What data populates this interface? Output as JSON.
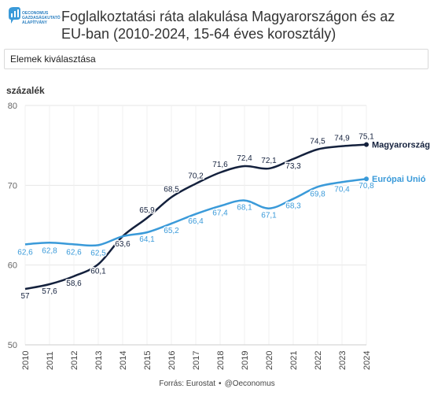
{
  "header": {
    "logo_text_1": "OECONOMUS",
    "logo_text_2": "GAZDASÁGKUTATÓ",
    "logo_text_3": "ALAPÍTVÁNY",
    "title": "Foglalkoztatási ráta alakulása Magyarországon és az EU-ban (2010-2024, 15-64 éves korosztály)",
    "logo_color": "#2a7fc1"
  },
  "selector": {
    "placeholder": "Elemek kiválasztása"
  },
  "footer": {
    "source": "Forrás: Eurostat",
    "separator": "•",
    "handle": "@Oeconomus"
  },
  "chart_data": {
    "type": "line",
    "ylabel": "százalék",
    "xlabel": "",
    "x": [
      2010,
      2011,
      2012,
      2013,
      2014,
      2015,
      2016,
      2017,
      2018,
      2019,
      2020,
      2021,
      2022,
      2023,
      2024
    ],
    "ylim": [
      50,
      80
    ],
    "yticks": [
      50,
      60,
      70,
      80
    ],
    "grid": true,
    "series": [
      {
        "name": "Magyarország",
        "color": "#14213d",
        "values": [
          57,
          57.6,
          58.6,
          60.1,
          63.6,
          65.9,
          68.5,
          70.2,
          71.6,
          72.4,
          72.1,
          73.3,
          74.5,
          74.9,
          75.1
        ],
        "labels": [
          "57",
          "57,6",
          "58,6",
          "60,1",
          "63,6",
          "65,9",
          "68,5",
          "70,2",
          "71,6",
          "72,4",
          "72,1",
          "73,3",
          "74,5",
          "74,9",
          "75,1"
        ]
      },
      {
        "name": "Európai Unió",
        "color": "#3a9ad9",
        "values": [
          62.6,
          62.8,
          62.6,
          62.5,
          63.6,
          64.1,
          65.2,
          66.4,
          67.4,
          68.1,
          67.1,
          68.3,
          69.8,
          70.4,
          70.8
        ],
        "labels": [
          "62,6",
          "62,8",
          "62,6",
          "62,5",
          "",
          "64,1",
          "65,2",
          "66,4",
          "67,4",
          "68,1",
          "67,1",
          "68,3",
          "69,8",
          "70,4",
          "70,8"
        ]
      }
    ]
  }
}
